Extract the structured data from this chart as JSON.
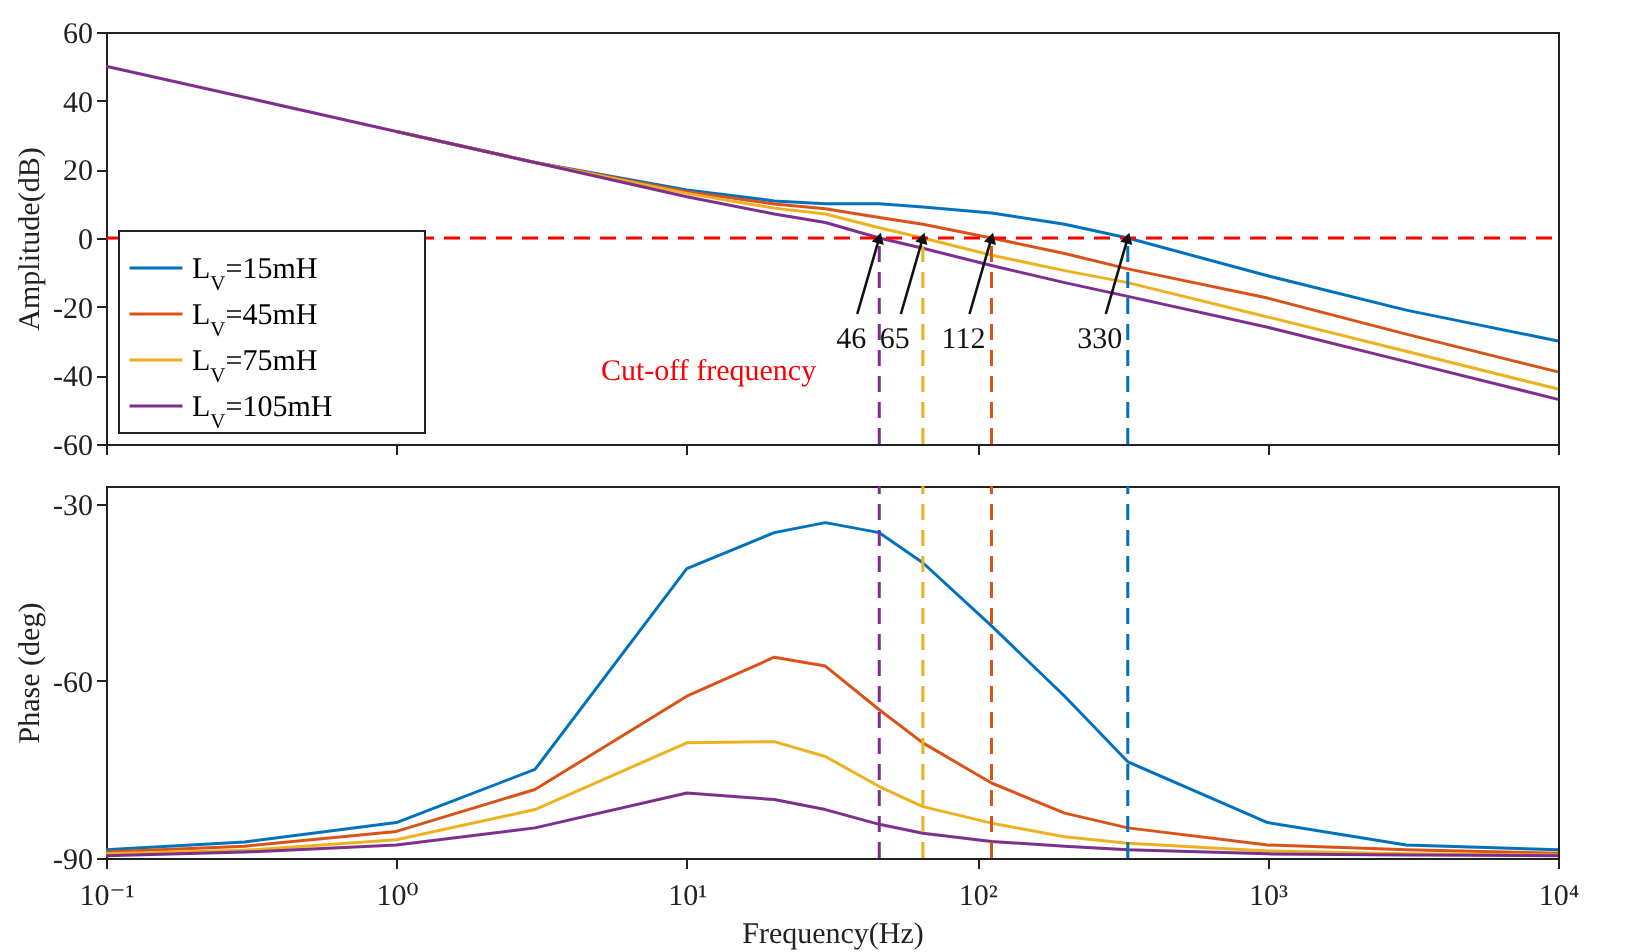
{
  "chart_data": [
    {
      "type": "line",
      "ylabel": "Amplitude(dB)",
      "x": [
        0.1,
        0.3,
        1,
        3,
        10,
        20,
        30,
        46,
        65,
        112,
        200,
        330,
        1000,
        3000,
        10000
      ],
      "xlim": [
        0.1,
        10000
      ],
      "xticks": [
        0.1,
        1,
        10,
        100,
        1000,
        10000
      ],
      "ylim": [
        -60,
        60
      ],
      "yticks": [
        -60,
        -40,
        -20,
        0,
        20,
        40,
        60
      ],
      "log": "x",
      "tick_labels": "y",
      "legend": "bottom left",
      "series": [
        {
          "name": "L$_{V}$=15mH",
          "color": "#0072bd",
          "values": [
            null,
            null,
            31,
            22,
            14,
            10.8,
            10,
            10,
            9,
            7.3,
            4,
            0,
            -11,
            -21,
            -30
          ]
        },
        {
          "name": "L$_{V}$=45mH",
          "color": "#d95319",
          "values": [
            null,
            null,
            31,
            22,
            13.5,
            9.9,
            8.5,
            6,
            4,
            0,
            -4.5,
            -9,
            -17.5,
            -28,
            -39
          ]
        },
        {
          "name": "L$_{V}$=75mH",
          "color": "#edb120",
          "values": [
            null,
            null,
            31,
            22,
            13,
            8.7,
            7,
            3,
            0,
            -5,
            -9.5,
            -13,
            -23,
            -33,
            -44
          ]
        },
        {
          "name": "L$_{V}$=105mH",
          "color": "#7e2f8e",
          "values": [
            50,
            41,
            31,
            22,
            12,
            7,
            4.5,
            0,
            -3,
            -8,
            -13,
            -17,
            -26,
            -36,
            -47
          ]
        }
      ],
      "ref_lines": [
        {
          "axis": "y",
          "value": 0,
          "color": "#ff0000",
          "line_style": "dashed"
        },
        {
          "axis": "x",
          "value": 46,
          "color": "#7e2f8e",
          "line_style": "dashed"
        },
        {
          "axis": "x",
          "value": 65,
          "color": "#edb120",
          "line_style": "dashed"
        },
        {
          "axis": "x",
          "value": 112,
          "color": "#d95319",
          "line_style": "dashed"
        },
        {
          "axis": "x",
          "value": 330,
          "color": "#0072bd",
          "line_style": "dashed"
        }
      ],
      "annotations": [
        {
          "text": "46",
          "x": 46,
          "y": 0
        },
        {
          "text": "65",
          "x": 65,
          "y": 0
        },
        {
          "text": "112",
          "x": 112,
          "y": 0
        },
        {
          "text": "330",
          "x": 330,
          "y": 0
        },
        "Cut-off frequency"
      ]
    },
    {
      "type": "line",
      "xlabel": "Frequency(Hz)",
      "ylabel": "Phase (deg)",
      "x": [
        0.1,
        0.3,
        1,
        3,
        10,
        20,
        30,
        46,
        65,
        112,
        200,
        330,
        1000,
        3000,
        10000
      ],
      "xlim": [
        0.1,
        10000
      ],
      "xticks": [
        {
          "value": 0.1,
          "label": "10⁻¹"
        },
        {
          "value": 1,
          "label": "10⁰"
        },
        {
          "value": 10,
          "label": "10¹"
        },
        {
          "value": 100,
          "label": "10²"
        },
        {
          "value": 1000,
          "label": "10³"
        },
        {
          "value": 10000,
          "label": "10⁴"
        }
      ],
      "ylim": [
        -90,
        -27
      ],
      "yticks": [
        -90,
        -60,
        -30
      ],
      "log": "x",
      "series": [
        {
          "color": "#0072bd",
          "values": [
            -88.6,
            -87.3,
            -84,
            -75,
            -41,
            -34.9,
            -33.2,
            -34.9,
            -40,
            -50.7,
            -62.6,
            -73.7,
            -84,
            -87.8,
            -88.6
          ]
        },
        {
          "color": "#d95319",
          "values": [
            -89,
            -88,
            -85.5,
            -78.4,
            -62.6,
            -56,
            -57.5,
            -64.9,
            -70.5,
            -77.3,
            -82.4,
            -84.9,
            -87.8,
            -88.6,
            -89.2
          ]
        },
        {
          "color": "#edb120",
          "values": [
            -89.3,
            -88.7,
            -86.9,
            -81.8,
            -70.5,
            -70.3,
            -72.8,
            -77.9,
            -81.3,
            -84.1,
            -86.4,
            -87.5,
            -88.8,
            -89.3,
            -89.5
          ]
        },
        {
          "color": "#7e2f8e",
          "values": [
            -89.6,
            -89,
            -87.8,
            -84.9,
            -79,
            -80.1,
            -81.8,
            -84.3,
            -85.8,
            -87.2,
            -88,
            -88.6,
            -89.3,
            -89.5,
            -89.6
          ]
        }
      ],
      "ref_lines": [
        {
          "axis": "x",
          "value": 46,
          "color": "#7e2f8e",
          "line_style": "dashed"
        },
        {
          "axis": "x",
          "value": 65,
          "color": "#edb120",
          "line_style": "dashed"
        },
        {
          "axis": "x",
          "value": 112,
          "color": "#d95319",
          "line_style": "dashed"
        },
        {
          "axis": "x",
          "value": 330,
          "color": "#0072bd",
          "line_style": "dashed"
        }
      ]
    }
  ]
}
